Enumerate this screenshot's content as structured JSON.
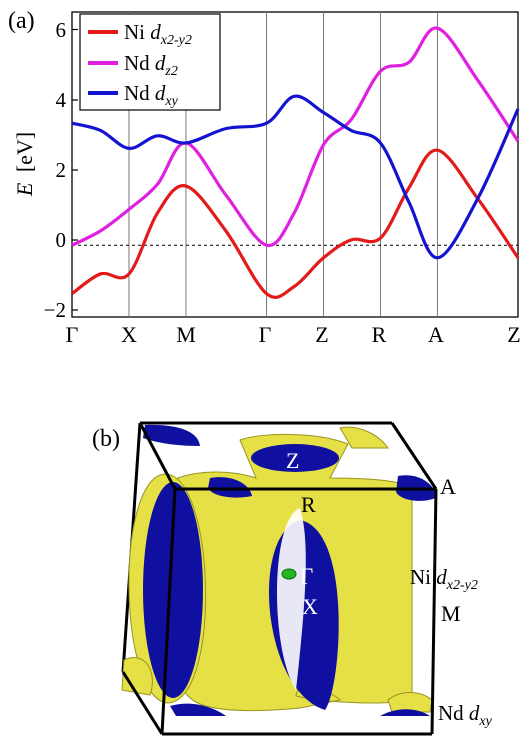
{
  "panel_a": {
    "label": "(a)",
    "ylabel_var": "E",
    "ylabel_unit": "[eV]",
    "ytick_labels": [
      "6",
      "4",
      "2",
      "0",
      "−2"
    ],
    "xtick_labels": [
      "Γ",
      "X",
      "M",
      "Γ",
      "Z",
      "R",
      "A",
      "Z"
    ],
    "legend": [
      {
        "base": "Ni ",
        "sym": "d",
        "sub": "x2-y2",
        "color": "#e31a1a"
      },
      {
        "base": "Nd ",
        "sym": "d",
        "sub": "z2",
        "color": "#e020e0"
      },
      {
        "base": "Nd ",
        "sym": "d",
        "sub": "xy",
        "color": "#1414d0"
      }
    ]
  },
  "panel_b": {
    "label": "(b)",
    "point_labels": [
      "Z",
      "R",
      "A",
      "Γ",
      "X",
      "M"
    ],
    "orbital_labels": [
      {
        "base": "Ni ",
        "sym": "d",
        "sub": "x2-y2"
      },
      {
        "base": "Nd ",
        "sym": "d",
        "sub": "xy"
      }
    ],
    "colors": {
      "surface_yellow": "#e6e047",
      "surface_blue": "#1010a0",
      "gamma_dot": "#22b822"
    }
  },
  "chart_data": {
    "type": "line",
    "xlabel": "",
    "ylabel": "E [eV]",
    "ylim": [
      -2,
      6.5
    ],
    "fermi_level": 0,
    "kpoints": [
      "Γ",
      "X",
      "M",
      "Γ",
      "Z",
      "R",
      "A",
      "Z"
    ],
    "kpoint_positions": [
      0,
      1,
      2,
      3.414,
      4.414,
      5.414,
      6.414,
      7.828
    ],
    "series": [
      {
        "name": "Ni d_{x2-y2}",
        "color": "#e31a1a",
        "x": [
          0,
          0.5,
          1,
          1.5,
          2,
          2.7,
          3.414,
          3.9,
          4.414,
          4.9,
          5.414,
          5.914,
          6.414,
          7.121,
          7.828
        ],
        "y": [
          -1.35,
          -0.8,
          -0.8,
          0.9,
          1.65,
          0.4,
          -1.35,
          -1.15,
          -0.35,
          0.15,
          0.2,
          1.6,
          2.65,
          1.3,
          -0.35
        ]
      },
      {
        "name": "Nd d_{z2}",
        "color": "#e020e0",
        "x": [
          0,
          0.5,
          1,
          1.5,
          2,
          2.7,
          3.414,
          3.9,
          4.414,
          4.9,
          5.414,
          5.914,
          6.414,
          7.121,
          7.828
        ],
        "y": [
          0.0,
          0.4,
          1.0,
          1.7,
          2.85,
          1.4,
          0.0,
          0.9,
          2.8,
          3.5,
          4.85,
          5.1,
          6.05,
          4.6,
          2.9
        ]
      },
      {
        "name": "Nd d_{xy}",
        "color": "#1414d0",
        "x": [
          0,
          0.5,
          1,
          1.5,
          2,
          2.7,
          3.414,
          3.9,
          4.414,
          4.9,
          5.414,
          5.914,
          6.414,
          7.121,
          7.828
        ],
        "y": [
          3.4,
          3.2,
          2.7,
          3.05,
          2.85,
          3.25,
          3.4,
          4.15,
          3.7,
          3.2,
          2.85,
          1.2,
          -0.35,
          1.3,
          3.8
        ]
      }
    ]
  }
}
